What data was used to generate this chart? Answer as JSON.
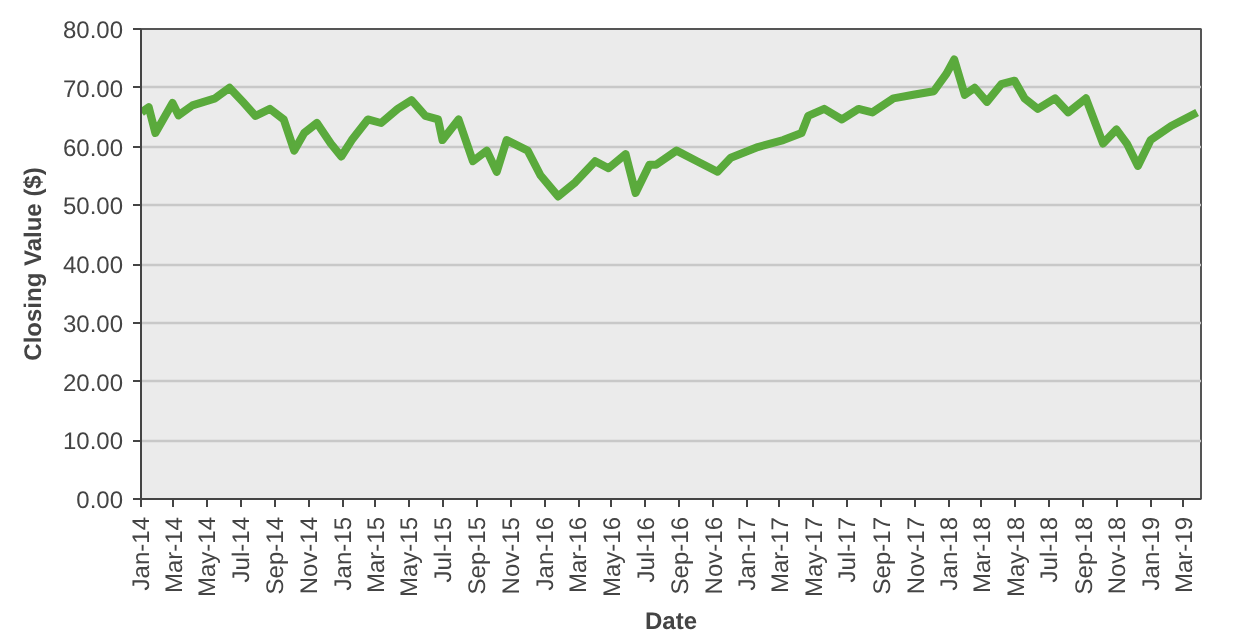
{
  "chart_data": {
    "type": "line",
    "xlabel": "Date",
    "ylabel": "Closing Value ($)",
    "x": [
      "2014-01-02",
      "2014-01-15",
      "2014-01-27",
      "2014-02-27",
      "2014-03-10",
      "2014-04-04",
      "2014-05-15",
      "2014-06-10",
      "2014-07-04",
      "2014-07-27",
      "2014-08-22",
      "2014-09-16",
      "2014-10-05",
      "2014-10-23",
      "2014-11-15",
      "2014-12-10",
      "2014-12-29",
      "2015-01-17",
      "2015-02-15",
      "2015-03-11",
      "2015-04-10",
      "2015-05-05",
      "2015-05-30",
      "2015-06-22",
      "2015-06-30",
      "2015-07-29",
      "2015-08-24",
      "2015-09-18",
      "2015-10-06",
      "2015-10-24",
      "2015-12-01",
      "2015-12-24",
      "2016-01-25",
      "2016-02-25",
      "2016-04-01",
      "2016-04-25",
      "2016-05-26",
      "2016-06-13",
      "2016-07-08",
      "2016-07-20",
      "2016-08-26",
      "2016-10-02",
      "2016-11-08",
      "2016-12-02",
      "2017-01-20",
      "2017-03-07",
      "2017-04-09",
      "2017-04-21",
      "2017-05-20",
      "2017-06-21",
      "2017-07-21",
      "2017-08-15",
      "2017-09-22",
      "2017-10-28",
      "2017-12-04",
      "2017-12-27",
      "2018-01-10",
      "2018-01-29",
      "2018-02-16",
      "2018-03-10",
      "2018-04-05",
      "2018-04-29",
      "2018-05-17",
      "2018-06-10",
      "2018-07-11",
      "2018-08-04",
      "2018-09-05",
      "2018-10-06",
      "2018-10-30",
      "2018-11-18",
      "2018-12-08",
      "2018-12-31",
      "2019-02-06",
      "2019-03-25"
    ],
    "series": [
      {
        "color": "#5aaa3c",
        "values": [
          65.8,
          66.7,
          62.3,
          67.4,
          65.3,
          67.0,
          68.2,
          70.0,
          67.6,
          65.2,
          66.4,
          64.6,
          59.3,
          62.3,
          64.0,
          60.5,
          58.3,
          61.1,
          64.6,
          64.0,
          66.4,
          67.9,
          65.2,
          64.6,
          61.1,
          64.6,
          57.5,
          59.3,
          55.7,
          61.1,
          59.3,
          55.1,
          51.5,
          53.9,
          57.5,
          56.3,
          58.7,
          52.1,
          56.9,
          56.9,
          59.3,
          57.5,
          55.7,
          58.1,
          59.9,
          61.1,
          62.3,
          65.2,
          66.4,
          64.6,
          66.4,
          65.8,
          68.2,
          68.8,
          69.4,
          72.4,
          74.8,
          68.8,
          70.0,
          67.6,
          70.6,
          71.2,
          68.2,
          66.4,
          68.2,
          65.8,
          68.2,
          60.5,
          62.9,
          60.5,
          56.7,
          61.1,
          63.5,
          65.8
        ]
      }
    ],
    "xlim": [
      "2014-01-01",
      "2019-04-01"
    ],
    "xticks": [
      {
        "value": "2014-01",
        "label": "Jan-14"
      },
      {
        "value": "2014-03",
        "label": "Mar-14"
      },
      {
        "value": "2014-05",
        "label": "May-14"
      },
      {
        "value": "2014-07",
        "label": "Jul-14"
      },
      {
        "value": "2014-09",
        "label": "Sep-14"
      },
      {
        "value": "2014-11",
        "label": "Nov-14"
      },
      {
        "value": "2015-01",
        "label": "Jan-15"
      },
      {
        "value": "2015-03",
        "label": "Mar-15"
      },
      {
        "value": "2015-05",
        "label": "May-15"
      },
      {
        "value": "2015-07",
        "label": "Jul-15"
      },
      {
        "value": "2015-09",
        "label": "Sep-15"
      },
      {
        "value": "2015-11",
        "label": "Nov-15"
      },
      {
        "value": "2016-01",
        "label": "Jan-16"
      },
      {
        "value": "2016-03",
        "label": "Mar-16"
      },
      {
        "value": "2016-05",
        "label": "May-16"
      },
      {
        "value": "2016-07",
        "label": "Jul-16"
      },
      {
        "value": "2016-09",
        "label": "Sep-16"
      },
      {
        "value": "2016-11",
        "label": "Nov-16"
      },
      {
        "value": "2017-01",
        "label": "Jan-17"
      },
      {
        "value": "2017-03",
        "label": "Mar-17"
      },
      {
        "value": "2017-05",
        "label": "May-17"
      },
      {
        "value": "2017-07",
        "label": "Jul-17"
      },
      {
        "value": "2017-09",
        "label": "Sep-17"
      },
      {
        "value": "2017-11",
        "label": "Nov-17"
      },
      {
        "value": "2018-01",
        "label": "Jan-18"
      },
      {
        "value": "2018-03",
        "label": "Mar-18"
      },
      {
        "value": "2018-05",
        "label": "May-18"
      },
      {
        "value": "2018-07",
        "label": "Jul-18"
      },
      {
        "value": "2018-09",
        "label": "Sep-18"
      },
      {
        "value": "2018-11",
        "label": "Nov-18"
      },
      {
        "value": "2019-01",
        "label": "Jan-19"
      },
      {
        "value": "2019-03",
        "label": "Mar-19"
      }
    ],
    "ylim": [
      0,
      80
    ],
    "yticks": [
      {
        "value": 0,
        "label": "0.00"
      },
      {
        "value": 10,
        "label": "10.00"
      },
      {
        "value": 20,
        "label": "20.00"
      },
      {
        "value": 30,
        "label": "30.00"
      },
      {
        "value": 40,
        "label": "40.00"
      },
      {
        "value": 50,
        "label": "50.00"
      },
      {
        "value": 60,
        "label": "60.00"
      },
      {
        "value": 70,
        "label": "70.00"
      },
      {
        "value": 80,
        "label": "80.00"
      }
    ],
    "grid": "y",
    "marker": "none",
    "line_style": "solid"
  }
}
